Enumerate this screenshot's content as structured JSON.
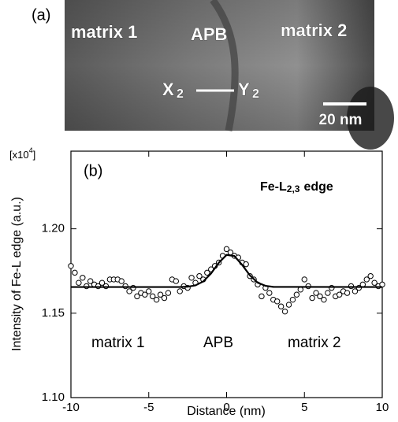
{
  "image_panel": {
    "panel_label": "(a)",
    "left_label": "matrix 1",
    "center_label": "APB",
    "right_label": "matrix 2",
    "point_x": "X",
    "point_x_sub": "2",
    "point_y": "Y",
    "point_y_sub": "2",
    "scale_bar": "20 nm"
  },
  "chart_data": {
    "type": "scatter",
    "panel_label": "(b)",
    "multiplier": {
      "base": "[x10",
      "exp": "4",
      "close": "]"
    },
    "annotation": {
      "main": "Fe-L",
      "sub": "2,3",
      "tail": "edge"
    },
    "region_labels": {
      "left": "matrix 1",
      "center": "APB",
      "right": "matrix 2"
    },
    "xlabel": "Distance (nm)",
    "ylabel": "Intensity of Fe-L edge (a.u.)",
    "xlim": [
      -10,
      10
    ],
    "xticks": [
      -10,
      -5,
      0,
      5,
      10
    ],
    "ylim": [
      1.1,
      1.246
    ],
    "yticks": [
      {
        "value": 1.1,
        "label": "1.10"
      },
      1.15,
      {
        "value": 1.2,
        "label": "1.20"
      }
    ],
    "marker_fill": "#ffffff",
    "marker_edge": "#000000",
    "x": [
      -10,
      -9.75,
      -9.5,
      -9.25,
      -9,
      -8.75,
      -8.5,
      -8.25,
      -8,
      -7.75,
      -7.5,
      -7.25,
      -7,
      -6.75,
      -6.5,
      -6.25,
      -6,
      -5.75,
      -5.5,
      -5.25,
      -5,
      -4.75,
      -4.5,
      -4.25,
      -4,
      -3.75,
      -3.5,
      -3.25,
      -3,
      -2.75,
      -2.5,
      -2.25,
      -2,
      -1.75,
      -1.5,
      -1.25,
      -1,
      -0.75,
      -0.5,
      -0.25,
      0,
      0.25,
      0.5,
      0.75,
      1,
      1.25,
      1.5,
      1.75,
      2,
      2.25,
      2.5,
      2.75,
      3,
      3.25,
      3.5,
      3.75,
      4,
      4.25,
      4.5,
      4.75,
      5,
      5.25,
      5.5,
      5.75,
      6,
      6.25,
      6.5,
      6.75,
      7,
      7.25,
      7.5,
      7.75,
      8,
      8.25,
      8.5,
      8.75,
      9,
      9.25,
      9.5,
      9.75,
      10
    ],
    "values": [
      1.178,
      1.174,
      1.168,
      1.171,
      1.166,
      1.169,
      1.167,
      1.166,
      1.168,
      1.166,
      1.17,
      1.17,
      1.17,
      1.169,
      1.166,
      1.163,
      1.165,
      1.16,
      1.162,
      1.161,
      1.163,
      1.16,
      1.158,
      1.161,
      1.159,
      1.162,
      1.17,
      1.169,
      1.163,
      1.166,
      1.165,
      1.171,
      1.168,
      1.172,
      1.17,
      1.174,
      1.176,
      1.178,
      1.18,
      1.184,
      1.188,
      1.186,
      1.184,
      1.183,
      1.18,
      1.179,
      1.172,
      1.17,
      1.167,
      1.16,
      1.165,
      1.162,
      1.158,
      1.157,
      1.154,
      1.151,
      1.155,
      1.158,
      1.161,
      1.164,
      1.17,
      1.166,
      1.159,
      1.162,
      1.16,
      1.158,
      1.162,
      1.165,
      1.16,
      1.161,
      1.163,
      1.162,
      1.166,
      1.163,
      1.165,
      1.167,
      1.17,
      1.172,
      1.168,
      1.166,
      1.167
    ],
    "fit": {
      "type": "line",
      "color": "#000000",
      "x": [
        -10,
        -3,
        -2.5,
        -2,
        -1.5,
        -1,
        -0.5,
        0,
        0.5,
        1,
        1.5,
        2,
        2.5,
        3,
        10
      ],
      "values": [
        1.1655,
        1.1655,
        1.1657,
        1.1665,
        1.1688,
        1.1735,
        1.1799,
        1.1845,
        1.1839,
        1.1786,
        1.1724,
        1.1681,
        1.1662,
        1.1656,
        1.1655
      ]
    }
  }
}
